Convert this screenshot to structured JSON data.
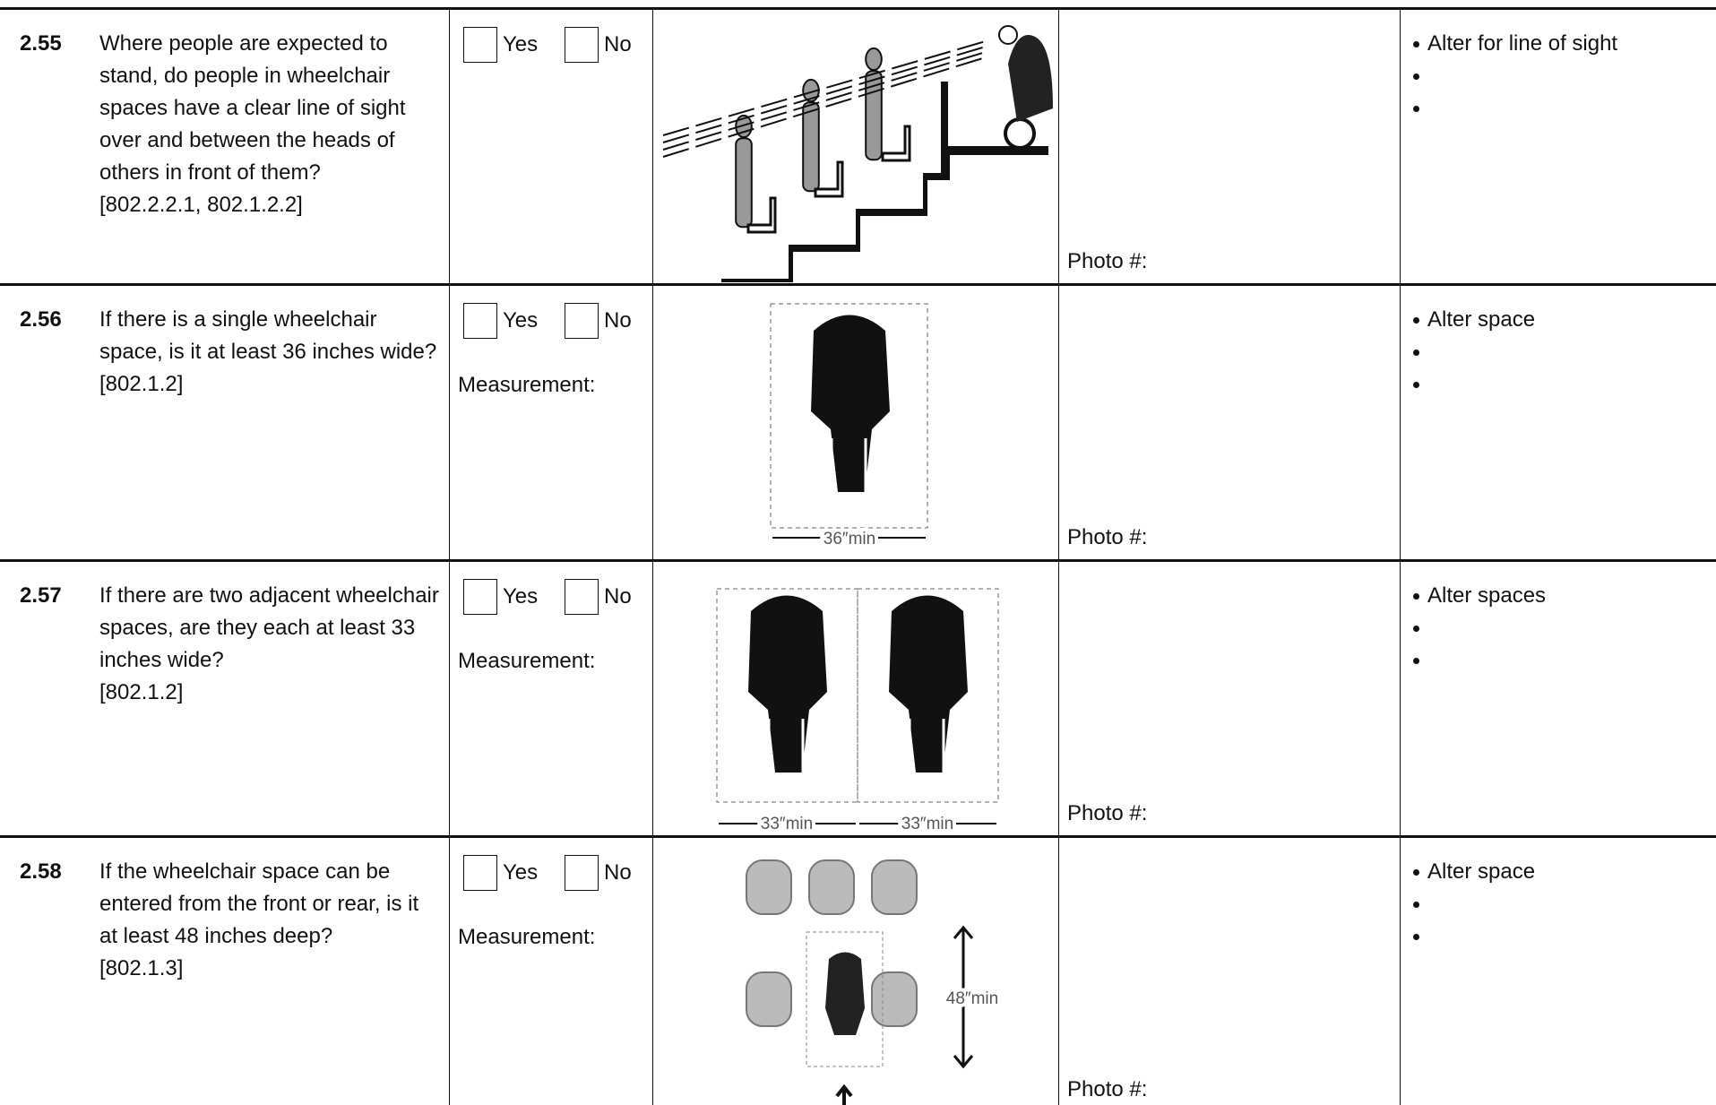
{
  "rows": [
    {
      "number": "2.55",
      "question": "Where people are expected to stand, do people in wheelchair spaces have a clear line of sight over and between the heads of others in front of them?",
      "reference": "[802.2.2.1, 802.1.2.2]",
      "options": [
        "Yes",
        "No"
      ],
      "photo": "Photo #:",
      "action": "Alter for line of sight"
    },
    {
      "number": "2.56",
      "question": "If there is a single wheelchair space, is it at least 36 inches wide?",
      "reference": "[802.1.2]",
      "options": [
        "Yes",
        "No"
      ],
      "measurement": "Measurement:",
      "figure_label": "36″min",
      "photo": "Photo #:",
      "action": "Alter space"
    },
    {
      "number": "2.57",
      "question": "If there are two adjacent wheelchair spaces, are they each at least 33 inches wide?",
      "reference": "[802.1.2]",
      "options": [
        "Yes",
        "No"
      ],
      "measurement": "Measurement:",
      "figure_label": "33″min",
      "photo": "Photo #:",
      "action": "Alter spaces"
    },
    {
      "number": "2.58",
      "question": "If the wheelchair space can be entered from the front or rear, is it at least 48 inches deep?",
      "reference": "[802.1.3]",
      "options": [
        "Yes",
        "No"
      ],
      "measurement": "Measurement:",
      "figure_label": "48″min",
      "photo": "Photo #:",
      "action": "Alter space"
    }
  ]
}
